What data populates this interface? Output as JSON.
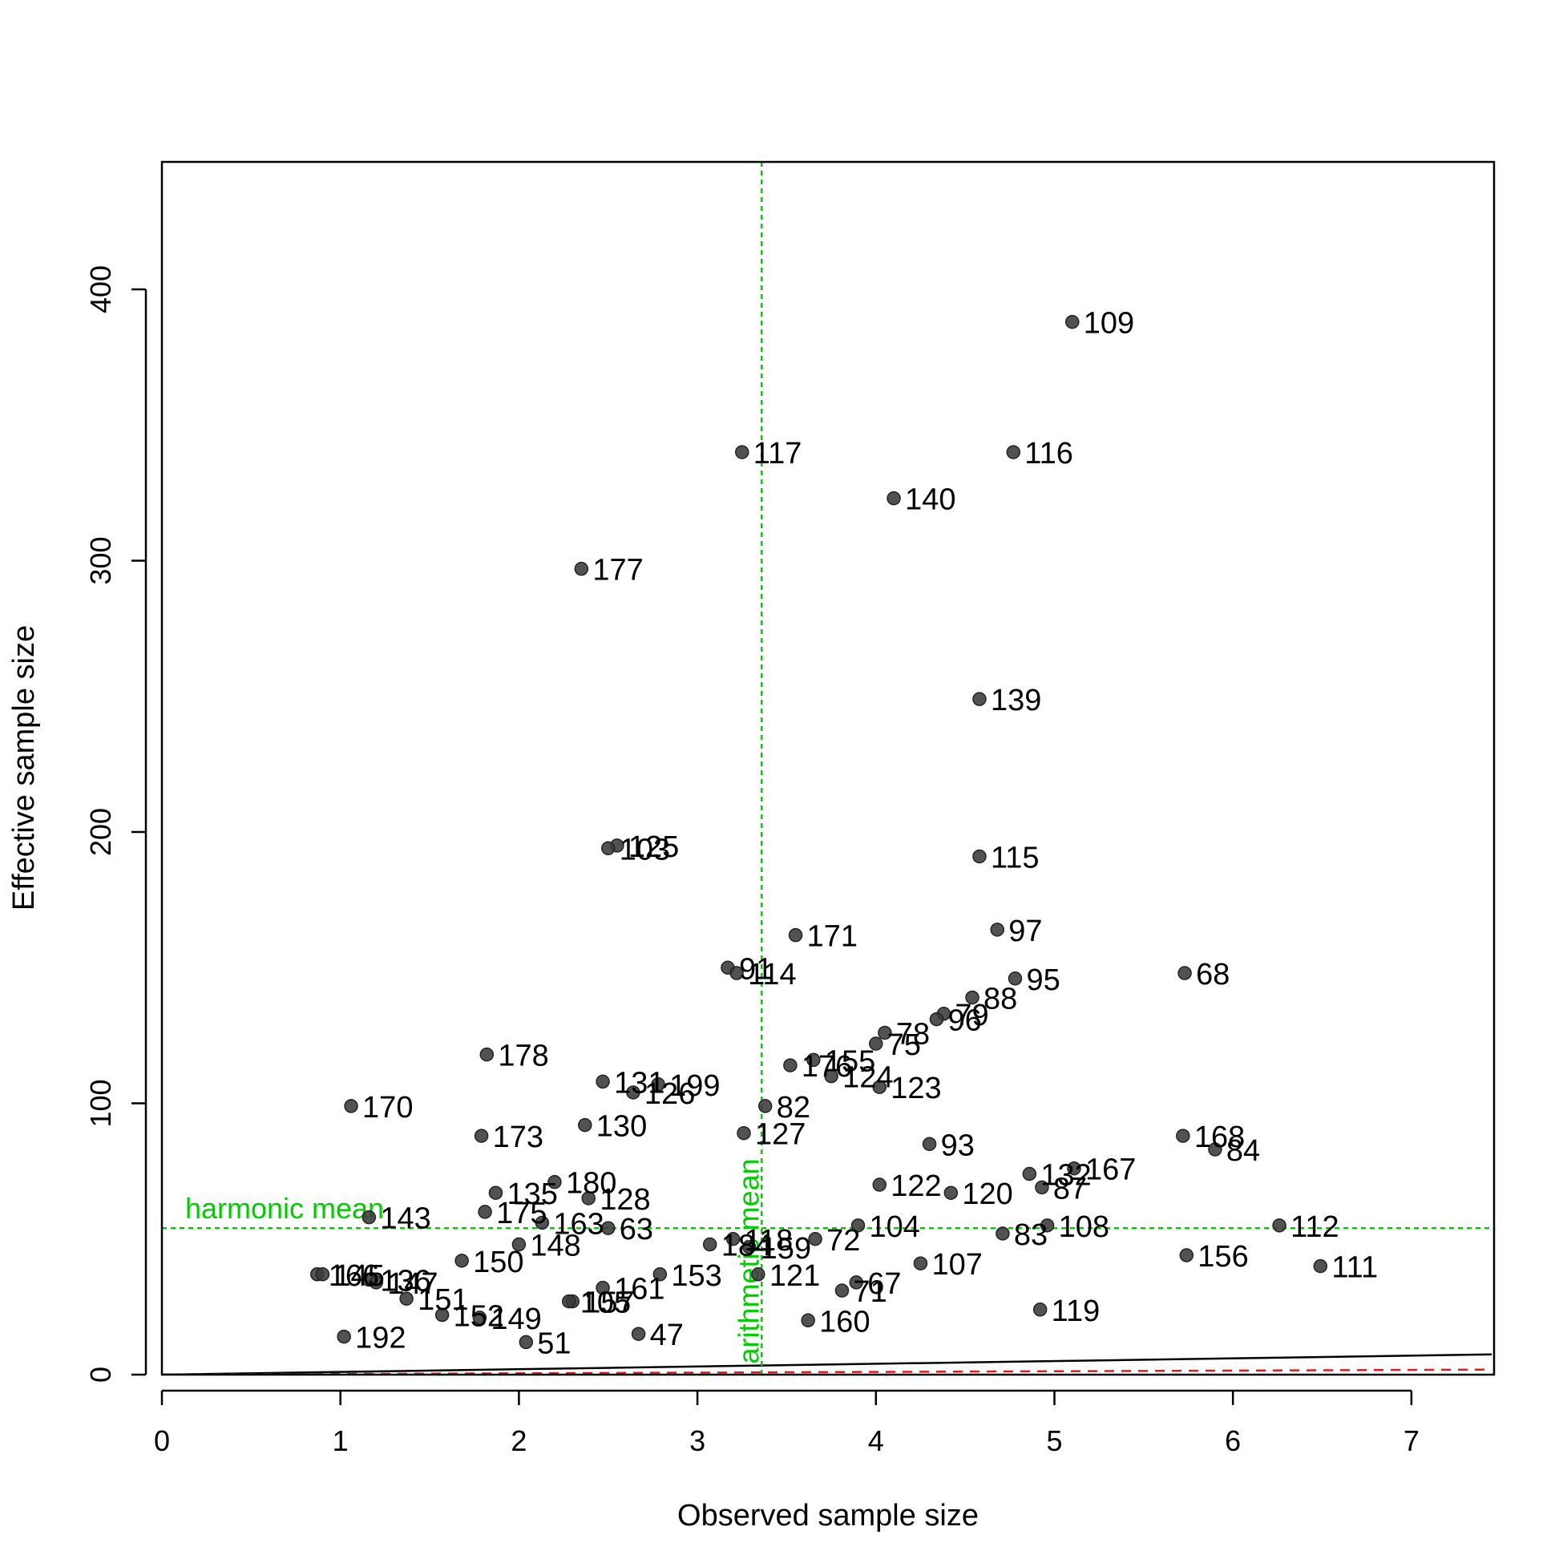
{
  "chart_data": {
    "type": "scatter",
    "title": "",
    "xlabel": "Observed sample size",
    "ylabel": "Effective sample size",
    "xlim": [
      0,
      7.45
    ],
    "ylim": [
      0,
      448
    ],
    "x_ticks": [
      0,
      1,
      2,
      3,
      4,
      5,
      6,
      7
    ],
    "y_ticks": [
      0,
      100,
      200,
      300,
      400
    ],
    "grid": false,
    "point_color": "#3a3a3a",
    "points": [
      {
        "x": 5.1,
        "y": 388,
        "label": "109"
      },
      {
        "x": 3.25,
        "y": 340,
        "label": "117"
      },
      {
        "x": 4.77,
        "y": 340,
        "label": "116"
      },
      {
        "x": 4.1,
        "y": 323,
        "label": "140"
      },
      {
        "x": 2.35,
        "y": 297,
        "label": "177"
      },
      {
        "x": 4.58,
        "y": 249,
        "label": "139"
      },
      {
        "x": 2.55,
        "y": 195,
        "label": "125"
      },
      {
        "x": 2.5,
        "y": 194,
        "label": "103"
      },
      {
        "x": 4.58,
        "y": 191,
        "label": "115"
      },
      {
        "x": 3.55,
        "y": 162,
        "label": "171"
      },
      {
        "x": 4.68,
        "y": 164,
        "label": "97"
      },
      {
        "x": 3.17,
        "y": 150,
        "label": "91"
      },
      {
        "x": 3.22,
        "y": 148,
        "label": "114"
      },
      {
        "x": 5.73,
        "y": 148,
        "label": "68"
      },
      {
        "x": 4.78,
        "y": 146,
        "label": "95"
      },
      {
        "x": 4.54,
        "y": 139,
        "label": "88"
      },
      {
        "x": 4.38,
        "y": 133,
        "label": "79"
      },
      {
        "x": 4.34,
        "y": 131,
        "label": "96"
      },
      {
        "x": 4.05,
        "y": 126,
        "label": "78"
      },
      {
        "x": 4.0,
        "y": 122,
        "label": "75"
      },
      {
        "x": 1.82,
        "y": 118,
        "label": "178"
      },
      {
        "x": 3.65,
        "y": 116,
        "label": "155"
      },
      {
        "x": 3.52,
        "y": 114,
        "label": "176"
      },
      {
        "x": 3.75,
        "y": 110,
        "label": "124"
      },
      {
        "x": 4.02,
        "y": 106,
        "label": "123"
      },
      {
        "x": 2.47,
        "y": 108,
        "label": "131"
      },
      {
        "x": 2.78,
        "y": 107,
        "label": "199"
      },
      {
        "x": 2.64,
        "y": 104,
        "label": "126"
      },
      {
        "x": 1.06,
        "y": 99,
        "label": "170"
      },
      {
        "x": 3.38,
        "y": 99,
        "label": "82"
      },
      {
        "x": 2.37,
        "y": 92,
        "label": "130"
      },
      {
        "x": 1.79,
        "y": 88,
        "label": "173"
      },
      {
        "x": 3.26,
        "y": 89,
        "label": "127"
      },
      {
        "x": 5.72,
        "y": 88,
        "label": "168"
      },
      {
        "x": 4.3,
        "y": 85,
        "label": "93"
      },
      {
        "x": 5.9,
        "y": 83,
        "label": "84"
      },
      {
        "x": 5.11,
        "y": 76,
        "label": "167"
      },
      {
        "x": 4.86,
        "y": 74,
        "label": "132"
      },
      {
        "x": 2.2,
        "y": 71,
        "label": "180"
      },
      {
        "x": 4.02,
        "y": 70,
        "label": "122"
      },
      {
        "x": 4.93,
        "y": 69,
        "label": "87"
      },
      {
        "x": 1.87,
        "y": 67,
        "label": "135"
      },
      {
        "x": 4.42,
        "y": 67,
        "label": "120"
      },
      {
        "x": 2.39,
        "y": 65,
        "label": "128"
      },
      {
        "x": 1.81,
        "y": 60,
        "label": "175"
      },
      {
        "x": 1.16,
        "y": 58,
        "label": "143"
      },
      {
        "x": 2.13,
        "y": 56,
        "label": "163"
      },
      {
        "x": 3.9,
        "y": 55,
        "label": "104"
      },
      {
        "x": 4.96,
        "y": 55,
        "label": "108"
      },
      {
        "x": 6.26,
        "y": 55,
        "label": "112"
      },
      {
        "x": 2.5,
        "y": 54,
        "label": "63"
      },
      {
        "x": 4.71,
        "y": 52,
        "label": "83"
      },
      {
        "x": 3.2,
        "y": 50,
        "label": "118"
      },
      {
        "x": 3.66,
        "y": 50,
        "label": "72"
      },
      {
        "x": 2.0,
        "y": 48,
        "label": "148"
      },
      {
        "x": 3.07,
        "y": 48,
        "label": "184"
      },
      {
        "x": 3.29,
        "y": 47,
        "label": "159"
      },
      {
        "x": 5.74,
        "y": 44,
        "label": "156"
      },
      {
        "x": 1.68,
        "y": 42,
        "label": "150"
      },
      {
        "x": 4.25,
        "y": 41,
        "label": "107"
      },
      {
        "x": 6.49,
        "y": 40,
        "label": "111"
      },
      {
        "x": 2.79,
        "y": 37,
        "label": "153"
      },
      {
        "x": 3.34,
        "y": 37,
        "label": "121"
      },
      {
        "x": 0.87,
        "y": 37,
        "label": "166"
      },
      {
        "x": 0.9,
        "y": 37,
        "label": "145"
      },
      {
        "x": 1.16,
        "y": 35,
        "label": "136"
      },
      {
        "x": 1.2,
        "y": 34,
        "label": "147"
      },
      {
        "x": 3.89,
        "y": 34,
        "label": "67"
      },
      {
        "x": 2.47,
        "y": 32,
        "label": "161"
      },
      {
        "x": 3.81,
        "y": 31,
        "label": "71"
      },
      {
        "x": 1.37,
        "y": 28,
        "label": "151"
      },
      {
        "x": 2.3,
        "y": 27,
        "label": "157"
      },
      {
        "x": 2.28,
        "y": 27,
        "label": "105"
      },
      {
        "x": 4.92,
        "y": 24,
        "label": "119"
      },
      {
        "x": 1.57,
        "y": 22,
        "label": "152"
      },
      {
        "x": 1.78,
        "y": 21,
        "label": "149"
      },
      {
        "x": 3.62,
        "y": 20,
        "label": "160"
      },
      {
        "x": 2.67,
        "y": 15,
        "label": "47"
      },
      {
        "x": 1.02,
        "y": 14,
        "label": "192"
      },
      {
        "x": 2.04,
        "y": 12,
        "label": "51"
      }
    ],
    "reference_lines": [
      {
        "orientation": "horizontal",
        "value": 54,
        "label": "harmonic mean",
        "color": "#00cc00",
        "style": "dotted"
      },
      {
        "orientation": "vertical",
        "value": 3.36,
        "label": "arithmetic mean",
        "color": "#00cc00",
        "style": "dotted"
      }
    ],
    "diagonal_lines": [
      {
        "slope": 1.0,
        "color": "#000000",
        "style": "solid"
      },
      {
        "slope": 0.25,
        "color": "#e31a1c",
        "style": "dashed"
      }
    ]
  }
}
